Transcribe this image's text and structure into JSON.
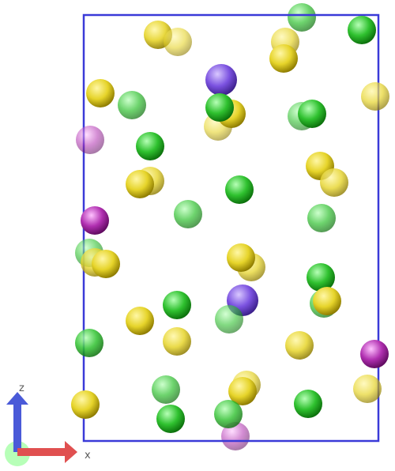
{
  "scene": {
    "box_color": "#3a3ad8",
    "background": "#ffffff",
    "palette": {
      "yellow": {
        "light": "#fff7a6",
        "mid": "#e6d42a",
        "dark": "#8c7a00"
      },
      "green": {
        "light": "#b6ffb6",
        "mid": "#2fc12f",
        "dark": "#0b6e0b"
      },
      "purple": {
        "light": "#d9c8ff",
        "mid": "#7b52e0",
        "dark": "#3b1f8a"
      },
      "magenta": {
        "light": "#ffc2ff",
        "mid": "#b02fb0",
        "dark": "#5e0a5e"
      }
    },
    "atom_counts": {
      "yellow": 36,
      "green": 28,
      "purple": 2,
      "magenta": 4
    }
  },
  "axes": {
    "x_label": "x",
    "z_label": "z",
    "x_color": "#e05050",
    "z_color": "#4a5ad8"
  }
}
